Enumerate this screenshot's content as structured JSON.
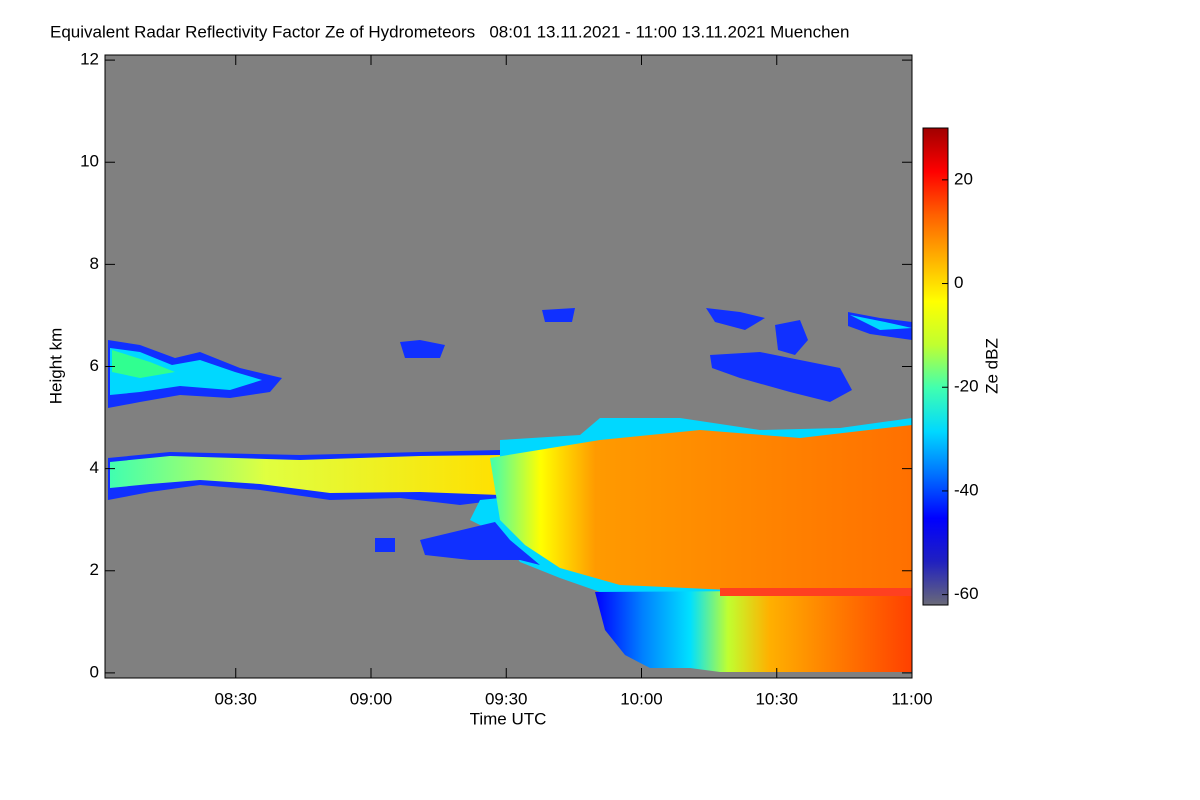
{
  "chart_data": {
    "type": "heatmap",
    "title": "Equivalent Radar Reflectivity Factor Ze of Hydrometeors   08:01 13.11.2021 - 11:00 13.11.2021 Muenchen",
    "x_label": "Time UTC",
    "y_label": "Height km",
    "xlim": [
      481,
      660
    ],
    "xticks": [
      {
        "value": 510,
        "label": "08:30"
      },
      {
        "value": 540,
        "label": "09:00"
      },
      {
        "value": 570,
        "label": "09:30"
      },
      {
        "value": 600,
        "label": "10:00"
      },
      {
        "value": 630,
        "label": "10:30"
      },
      {
        "value": 660,
        "label": "11:00"
      }
    ],
    "ylim": [
      -0.1,
      12.1
    ],
    "yticks": [
      0,
      2,
      4,
      6,
      8,
      10,
      12
    ],
    "colorbar": {
      "label": "Ze dBZ",
      "lim": [
        -62,
        30
      ],
      "ticks": [
        -60,
        -40,
        -20,
        0,
        20
      ],
      "colormap": [
        "#6a6a78",
        "#2020c0",
        "#0000ff",
        "#0070ff",
        "#00d8ff",
        "#40ffb0",
        "#c0ff30",
        "#ffff00",
        "#ffb000",
        "#ff6000",
        "#ff0000",
        "#a00000"
      ]
    },
    "background": "#808080"
  }
}
